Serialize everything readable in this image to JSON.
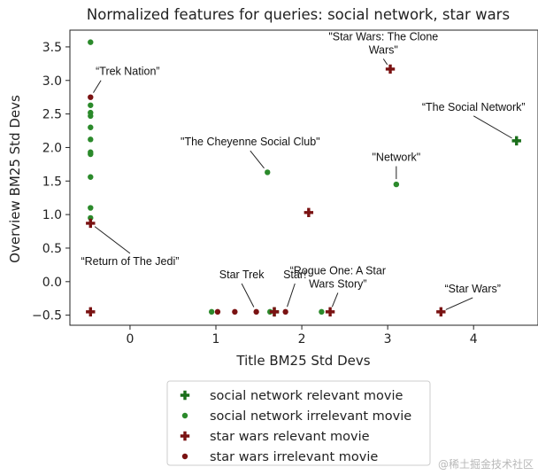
{
  "chart_data": {
    "type": "scatter",
    "title": "Normalized features for queries: social network, star wars",
    "xlabel": "Title BM25 Std Devs",
    "ylabel": "Overview BM25 Std Devs",
    "xlim": [
      -0.7,
      4.75
    ],
    "ylim": [
      -0.65,
      3.75
    ],
    "xticks": [
      0,
      1,
      2,
      3,
      4
    ],
    "yticks": [
      -0.5,
      0.0,
      0.5,
      1.0,
      1.5,
      2.0,
      2.5,
      3.0,
      3.5
    ],
    "xtick_labels": [
      "0",
      "1",
      "2",
      "3",
      "4"
    ],
    "ytick_labels": [
      "−0.5",
      "0.0",
      "0.5",
      "1.0",
      "1.5",
      "2.0",
      "2.5",
      "3.0",
      "3.5"
    ],
    "legend_position": "below",
    "series": [
      {
        "name": "social network relevant movie",
        "marker": "plus",
        "color": "#1a6e1a",
        "points": [
          [
            4.5,
            2.1
          ],
          [
            1.68,
            -0.45
          ]
        ]
      },
      {
        "name": "social network irrelevant movie",
        "marker": "dot",
        "color": "#2b8a2b",
        "points": [
          [
            -0.46,
            3.57
          ],
          [
            -0.46,
            2.63
          ],
          [
            -0.46,
            2.52
          ],
          [
            -0.46,
            2.47
          ],
          [
            -0.46,
            2.3
          ],
          [
            -0.46,
            2.12
          ],
          [
            -0.46,
            1.93
          ],
          [
            -0.46,
            1.9
          ],
          [
            -0.46,
            1.56
          ],
          [
            -0.46,
            1.1
          ],
          [
            -0.46,
            0.95
          ],
          [
            1.6,
            1.63
          ],
          [
            3.1,
            1.45
          ],
          [
            0.95,
            -0.45
          ],
          [
            1.63,
            -0.45
          ],
          [
            2.23,
            -0.45
          ]
        ]
      },
      {
        "name": "star wars relevant movie",
        "marker": "plus",
        "color": "#7a1212",
        "points": [
          [
            3.03,
            3.17
          ],
          [
            2.08,
            1.03
          ],
          [
            -0.46,
            0.87
          ],
          [
            -0.46,
            -0.45
          ],
          [
            1.68,
            -0.45
          ],
          [
            2.33,
            -0.45
          ],
          [
            3.62,
            -0.45
          ]
        ]
      },
      {
        "name": "star wars irrelevant movie",
        "marker": "dot",
        "color": "#7a1212",
        "points": [
          [
            -0.46,
            2.75
          ],
          [
            1.02,
            -0.45
          ],
          [
            1.22,
            -0.45
          ],
          [
            1.47,
            -0.45
          ],
          [
            1.81,
            -0.45
          ]
        ]
      }
    ],
    "annotations": [
      {
        "lines": [
          "\"Star Wars: The Clone",
          "Wars\""
        ],
        "point": [
          3.03,
          3.17
        ],
        "text_at": [
          2.95,
          3.6
        ],
        "anchor": "middle"
      },
      {
        "lines": [
          "“Trek Nation”"
        ],
        "point": [
          -0.46,
          2.75
        ],
        "text_at": [
          -0.4,
          3.08
        ],
        "anchor": "start"
      },
      {
        "lines": [
          "“The Social Network”"
        ],
        "point": [
          4.5,
          2.1
        ],
        "text_at": [
          4.0,
          2.55
        ],
        "anchor": "middle"
      },
      {
        "lines": [
          "\"The Cheyenne Social Club\""
        ],
        "point": [
          1.6,
          1.63
        ],
        "text_at": [
          1.4,
          2.03
        ],
        "anchor": "middle"
      },
      {
        "lines": [
          "\"Network\""
        ],
        "point": [
          3.1,
          1.45
        ],
        "text_at": [
          3.1,
          1.8
        ],
        "anchor": "middle"
      },
      {
        "lines": [
          "“Return of The Jedi”"
        ],
        "point": [
          -0.46,
          0.87
        ],
        "text_at": [
          0.0,
          0.25
        ],
        "anchor": "middle"
      },
      {
        "lines": [
          "Star Trek"
        ],
        "point": [
          1.47,
          -0.45
        ],
        "text_at": [
          1.3,
          0.05
        ],
        "anchor": "middle"
      },
      {
        "lines": [
          "Star!"
        ],
        "point": [
          1.81,
          -0.45
        ],
        "text_at": [
          1.92,
          0.05
        ],
        "anchor": "middle"
      },
      {
        "lines": [
          "“Rogue One: A Star",
          "Wars Story”"
        ],
        "point": [
          2.33,
          -0.45
        ],
        "text_at": [
          2.42,
          0.11
        ],
        "anchor": "middle"
      },
      {
        "lines": [
          "“Star Wars”"
        ],
        "point": [
          3.62,
          -0.45
        ],
        "text_at": [
          3.99,
          -0.16
        ],
        "anchor": "middle"
      }
    ]
  },
  "watermark": "@稀土掘金技术社区"
}
